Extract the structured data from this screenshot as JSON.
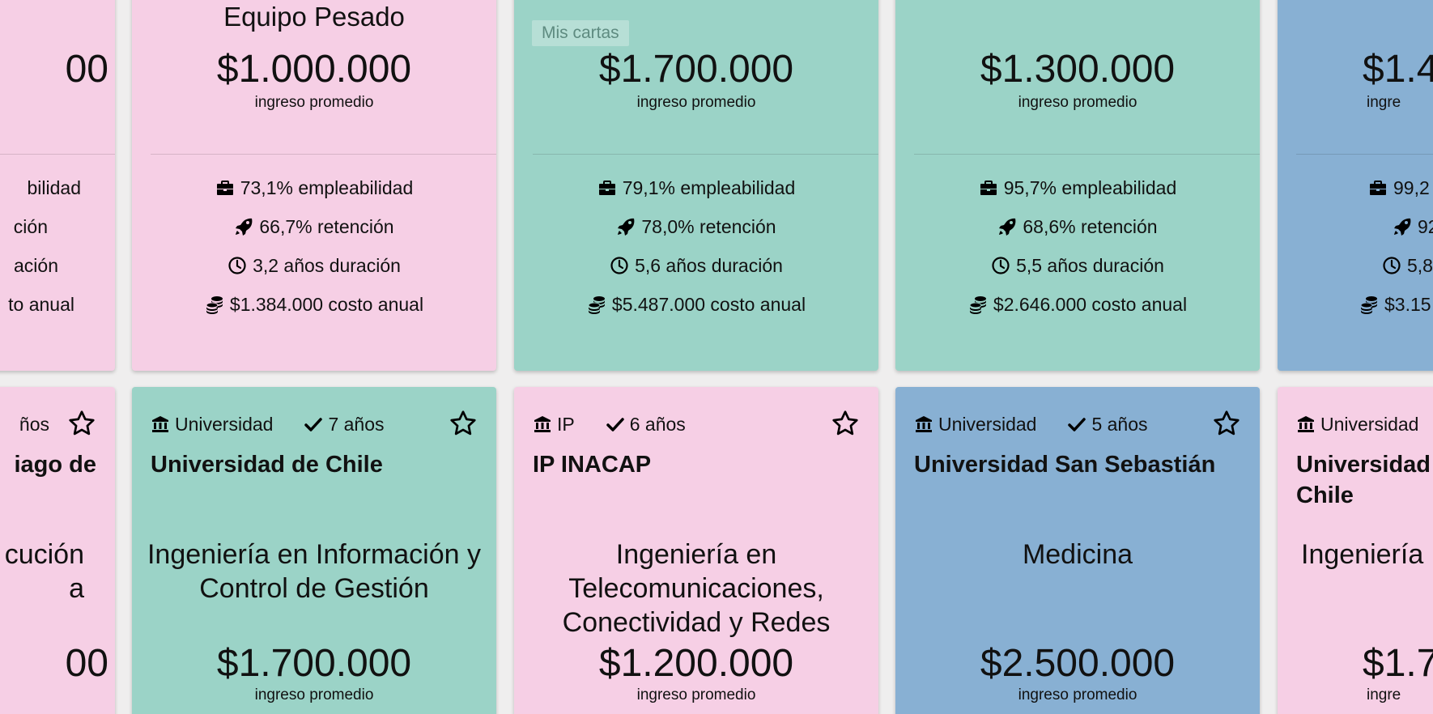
{
  "chip_label": "Mis cartas",
  "colors": {
    "pink": "#f6cfe5",
    "teal": "#9bd3c7",
    "blue": "#88b0d3"
  },
  "top_cards": [
    {
      "color": "pink",
      "career": "",
      "income": "00",
      "income_label": "",
      "stats": {
        "employability": "bilidad",
        "retention": "ción",
        "duration": "ación",
        "cost": "to anual"
      }
    },
    {
      "color": "pink",
      "career": "Equipo Pesado",
      "income": "$1.000.000",
      "income_label": "ingreso promedio",
      "stats": {
        "employability": "73,1% empleabilidad",
        "retention": "66,7% retención",
        "duration": "3,2 años duración",
        "cost": "$1.384.000 costo anual"
      }
    },
    {
      "color": "teal",
      "career": "",
      "income": "$1.700.000",
      "income_label": "ingreso promedio",
      "stats": {
        "employability": "79,1% empleabilidad",
        "retention": "78,0% retención",
        "duration": "5,6 años duración",
        "cost": "$5.487.000 costo anual"
      }
    },
    {
      "color": "teal",
      "career": "",
      "income": "$1.300.000",
      "income_label": "ingreso promedio",
      "stats": {
        "employability": "95,7% empleabilidad",
        "retention": "68,6% retención",
        "duration": "5,5 años duración",
        "cost": "$2.646.000 costo anual"
      }
    },
    {
      "color": "blue",
      "career": "",
      "income": "$1.4",
      "income_label": "ingre",
      "stats": {
        "employability": "99,2",
        "retention": "92",
        "duration": "5,8",
        "cost": "$3.15"
      }
    }
  ],
  "bottom_cards": [
    {
      "color": "pink",
      "inst_type": "",
      "accreditation": "ños",
      "institution": "iago de",
      "career": "cución\na",
      "income": "00",
      "income_label": ""
    },
    {
      "color": "teal",
      "inst_type": "Universidad",
      "accreditation": "7 años",
      "institution": "Universidad de Chile",
      "career": "Ingeniería en Información y Control de Gestión",
      "income": "$1.700.000",
      "income_label": "ingreso promedio"
    },
    {
      "color": "pink",
      "inst_type": "IP",
      "accreditation": "6 años",
      "institution": "IP INACAP",
      "career": "Ingeniería en Telecomunicaciones, Conectividad y Redes",
      "income": "$1.200.000",
      "income_label": "ingreso promedio"
    },
    {
      "color": "blue",
      "inst_type": "Universidad",
      "accreditation": "5 años",
      "institution": "Universidad San Sebastián",
      "career": "Medicina",
      "income": "$2.500.000",
      "income_label": "ingreso promedio"
    },
    {
      "color": "pink",
      "inst_type": "Universidad",
      "accreditation": "",
      "institution": "Universidad\nChile",
      "career": "Ingeniería",
      "income": "$1.7",
      "income_label": "ingre"
    }
  ]
}
